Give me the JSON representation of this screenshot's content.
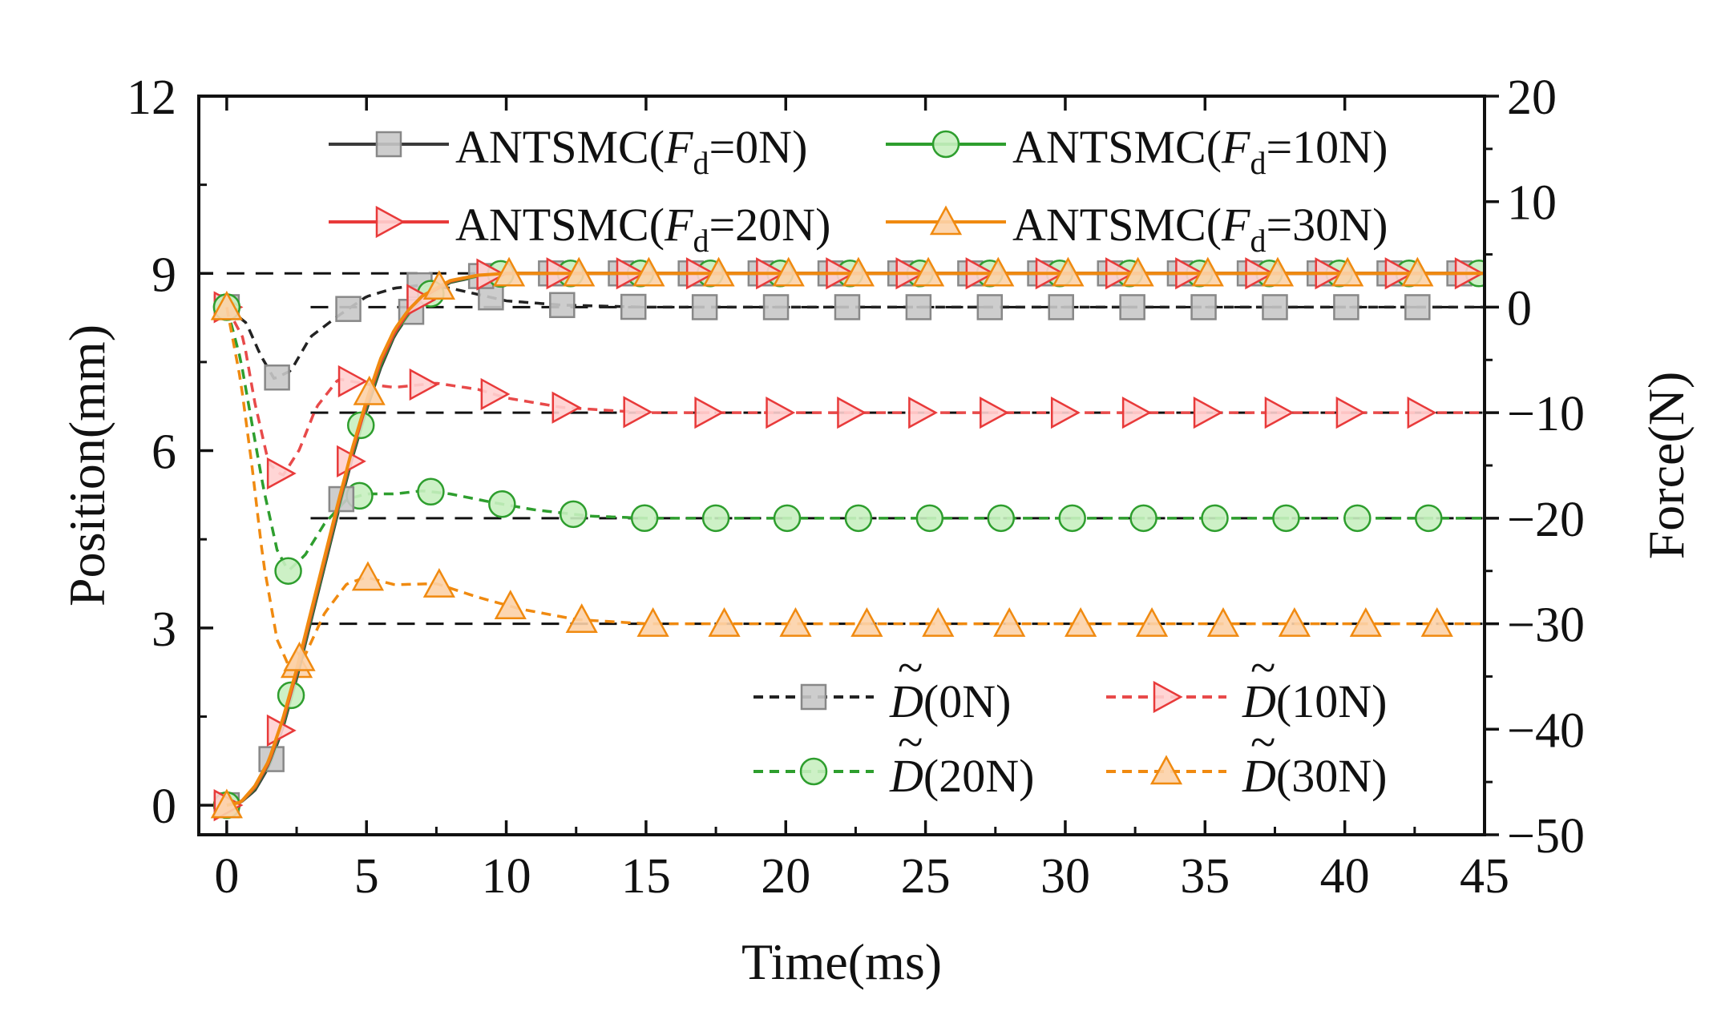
{
  "chart_data": {
    "type": "line",
    "title": "",
    "xlabel": "Time(ms)",
    "ylabel": "Position(mm)",
    "y2label": "Force(N)",
    "xlim": [
      -1,
      45
    ],
    "ylim": [
      -0.5,
      12
    ],
    "y2lim": [
      -50,
      20
    ],
    "x_ticks": [
      0,
      5,
      10,
      15,
      20,
      25,
      30,
      35,
      40,
      45
    ],
    "y_ticks": [
      0,
      3,
      6,
      9,
      12
    ],
    "y2_ticks": [
      -50,
      -40,
      -30,
      -20,
      -10,
      0,
      10,
      20
    ],
    "minus_sign": "−",
    "position_series": [
      {
        "name": "ANTSMC(Fd=0N)",
        "label_main": "ANTSMC(",
        "label_F": "F",
        "label_sub": "d",
        "label_tail": "=0N)",
        "color": "#3a3a3a",
        "marker": "square",
        "marker_fill": "#c8c8c8",
        "marker_stroke": "#888888",
        "x": [
          0,
          0.5,
          1,
          1.5,
          2,
          2.5,
          3,
          3.5,
          4,
          4.5,
          5,
          5.5,
          6,
          6.5,
          7,
          8,
          9,
          10,
          12,
          15,
          20,
          45
        ],
        "y": [
          0,
          0.05,
          0.25,
          0.65,
          1.3,
          2.15,
          3.1,
          4.05,
          5.0,
          5.9,
          6.7,
          7.4,
          7.95,
          8.3,
          8.55,
          8.85,
          8.95,
          9.0,
          9.0,
          9.0,
          9.0,
          9.0
        ]
      },
      {
        "name": "ANTSMC(Fd=10N)",
        "label_main": "ANTSMC(",
        "label_F": "F",
        "label_sub": "d",
        "label_tail": "=10N)",
        "color": "#2e9e2e",
        "marker": "circle",
        "marker_fill": "#c8f0c0",
        "marker_stroke": "#2e9e2e",
        "x": [
          0,
          0.5,
          1,
          1.5,
          2,
          2.5,
          3,
          3.5,
          4,
          4.5,
          5,
          5.5,
          6,
          6.5,
          7,
          8,
          9,
          10,
          12,
          15,
          20,
          45
        ],
        "y": [
          0,
          0.05,
          0.28,
          0.7,
          1.35,
          2.2,
          3.15,
          4.1,
          5.05,
          5.95,
          6.75,
          7.45,
          7.98,
          8.32,
          8.57,
          8.86,
          8.96,
          9.0,
          9.0,
          9.0,
          9.0,
          9.0
        ]
      },
      {
        "name": "ANTSMC(Fd=20N)",
        "label_main": "ANTSMC(",
        "label_F": "F",
        "label_sub": "d",
        "label_tail": "=20N)",
        "color": "#e83a3a",
        "marker": "triangle-right",
        "marker_fill": "#ffd0d0",
        "marker_stroke": "#e83a3a",
        "x": [
          0,
          0.5,
          1,
          1.5,
          2,
          2.5,
          3,
          3.5,
          4,
          4.5,
          5,
          5.5,
          6,
          6.5,
          7,
          8,
          9,
          10,
          12,
          15,
          20,
          45
        ],
        "y": [
          0,
          0.05,
          0.3,
          0.72,
          1.4,
          2.25,
          3.2,
          4.15,
          5.1,
          6.0,
          6.8,
          7.5,
          8.0,
          8.35,
          8.6,
          8.87,
          8.97,
          9.0,
          9.0,
          9.0,
          9.0,
          9.0
        ]
      },
      {
        "name": "ANTSMC(Fd=30N)",
        "label_main": "ANTSMC(",
        "label_F": "F",
        "label_sub": "d",
        "label_tail": "=30N)",
        "color": "#f08a10",
        "marker": "triangle-up",
        "marker_fill": "#fcd2a8",
        "marker_stroke": "#f08a10",
        "x": [
          0,
          0.5,
          1,
          1.5,
          2,
          2.5,
          3,
          3.5,
          4,
          4.5,
          5,
          5.5,
          6,
          6.5,
          7,
          8,
          9,
          10,
          12,
          15,
          20,
          45
        ],
        "y": [
          0,
          0.05,
          0.32,
          0.75,
          1.45,
          2.3,
          3.25,
          4.2,
          5.15,
          6.05,
          6.85,
          7.55,
          8.05,
          8.38,
          8.62,
          8.88,
          8.97,
          9.0,
          9.0,
          9.0,
          9.0,
          9.0
        ]
      }
    ],
    "force_series": [
      {
        "name": "D(0N)",
        "label_symbol": "D",
        "label_tilde": "~",
        "label_tail": "(0N)",
        "color": "#222222",
        "marker": "square",
        "marker_fill": "#c8c8c8",
        "marker_stroke": "#888888",
        "reference": 0,
        "x": [
          0,
          0.7,
          1.2,
          1.7,
          2.3,
          3,
          4,
          5,
          6,
          7,
          8,
          9,
          10,
          12,
          15,
          45
        ],
        "y": [
          0,
          -1.5,
          -4.5,
          -6.8,
          -6.0,
          -2.8,
          -0.8,
          1.0,
          1.8,
          2.1,
          1.8,
          1.2,
          0.6,
          0.2,
          0,
          0
        ]
      },
      {
        "name": "D(10N)",
        "label_symbol": "D",
        "label_tilde": "~",
        "label_tail": "(10N)",
        "color": "#e84a4a",
        "marker": "triangle-right",
        "marker_fill": "#ffd0d0",
        "marker_stroke": "#e83a3a",
        "reference": -10,
        "x": [
          0,
          0.6,
          1.0,
          1.5,
          2.0,
          2.6,
          3.2,
          4,
          5,
          6,
          7.5,
          9,
          10,
          12,
          15,
          45
        ],
        "y": [
          0,
          -3,
          -9,
          -14.8,
          -16.0,
          -13.5,
          -9.5,
          -6.8,
          -7.3,
          -7.6,
          -7.2,
          -7.8,
          -8.6,
          -9.5,
          -10,
          -10
        ]
      },
      {
        "name": "D(20N)",
        "label_symbol": "D",
        "label_tilde": "~",
        "label_tail": "(20N)",
        "color": "#2e9e2e",
        "marker": "circle",
        "marker_fill": "#c8f0c0",
        "marker_stroke": "#2e9e2e",
        "reference": -20,
        "x": [
          0,
          0.5,
          0.9,
          1.3,
          1.8,
          2.2,
          2.8,
          3.5,
          4.3,
          5,
          6,
          7,
          8,
          9.5,
          11,
          13,
          15,
          45
        ],
        "y": [
          0,
          -5,
          -11,
          -17,
          -23,
          -25.0,
          -23.5,
          -20.5,
          -18.2,
          -17.7,
          -17.7,
          -17.4,
          -17.7,
          -18.5,
          -19.2,
          -19.8,
          -20,
          -20
        ]
      },
      {
        "name": "D(30N)",
        "label_symbol": "D",
        "label_tilde": "~",
        "label_tail": "(30N)",
        "color": "#f08a10",
        "marker": "triangle-up",
        "marker_fill": "#fcd2a8",
        "marker_stroke": "#f08a10",
        "reference": -30,
        "x": [
          0,
          0.5,
          0.9,
          1.3,
          1.8,
          2.3,
          2.8,
          3.5,
          4.3,
          5,
          6,
          7.5,
          9,
          10.5,
          12.5,
          15,
          45
        ],
        "y": [
          0,
          -7,
          -15,
          -24,
          -31.5,
          -34.5,
          -33.0,
          -29.0,
          -26.2,
          -25.6,
          -26.3,
          -26.2,
          -27.5,
          -28.6,
          -29.6,
          -30,
          -30
        ]
      }
    ]
  }
}
